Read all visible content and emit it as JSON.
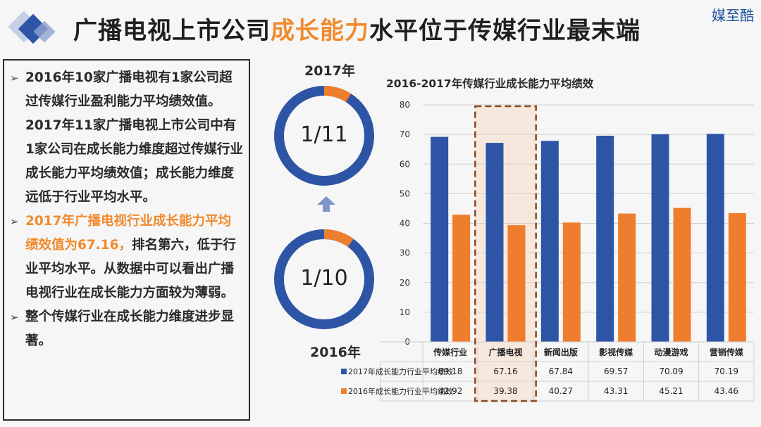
{
  "header": {
    "title_part1": "广播电视上市公司",
    "title_highlight": "成长能力",
    "title_part2": "水平位于传媒行业最末端",
    "brand": "媒至酷"
  },
  "notes": {
    "p1": "2016年10家广播电视有1家公司超过传媒行业盈利能力平均绩效值。2017年11家广播电视上市公司中有1家公司在成长能力维度超过传媒行业成长能力平均绩效值；成长能力维度远低于行业平均水平。",
    "p2_highlight": "2017年广播电视行业成长能力平均绩效值为67.16，",
    "p2_rest": "排名第六，低于行业平均水平。从数据中可以看出广播电视行业在成长能力方面较为薄弱。",
    "p3": "整个传媒行业在成长能力维度进步显著。"
  },
  "donuts": {
    "top_year": "2017年",
    "top_label": "1/11",
    "top_fraction": 0.0909,
    "bottom_year": "2016年",
    "bottom_label": "1/10",
    "bottom_fraction": 0.1,
    "colors": {
      "main": "#2e55a5",
      "highlight": "#ef7d2e"
    }
  },
  "chart_data": {
    "type": "bar",
    "title": "2016-2017年传媒行业成长能力平均绩效",
    "categories": [
      "传媒行业",
      "广播电视",
      "新闻出版",
      "影视传媒",
      "动漫游戏",
      "营销传媒"
    ],
    "series": [
      {
        "name": "2017年成长能力行业平均绩效",
        "values": [
          69.18,
          67.16,
          67.84,
          69.57,
          70.09,
          70.19
        ],
        "color": "#2e55a5"
      },
      {
        "name": "2016年成长能力行业平均绩效",
        "values": [
          42.92,
          39.38,
          40.27,
          43.31,
          45.21,
          43.46
        ],
        "color": "#ef7d2e"
      }
    ],
    "value_labels": [
      [
        "69.18",
        "67.16",
        "67.84",
        "69.57",
        "70.09",
        "70.19"
      ],
      [
        "42.92",
        "39.38",
        "40.27",
        "43.31",
        "45.21",
        "43.46"
      ]
    ],
    "ylim": [
      0,
      80
    ],
    "yticks": [
      0,
      10,
      20,
      30,
      40,
      50,
      60,
      70,
      80
    ],
    "grid": true,
    "legend": "data-table-below",
    "highlight_category": "广播电视"
  }
}
